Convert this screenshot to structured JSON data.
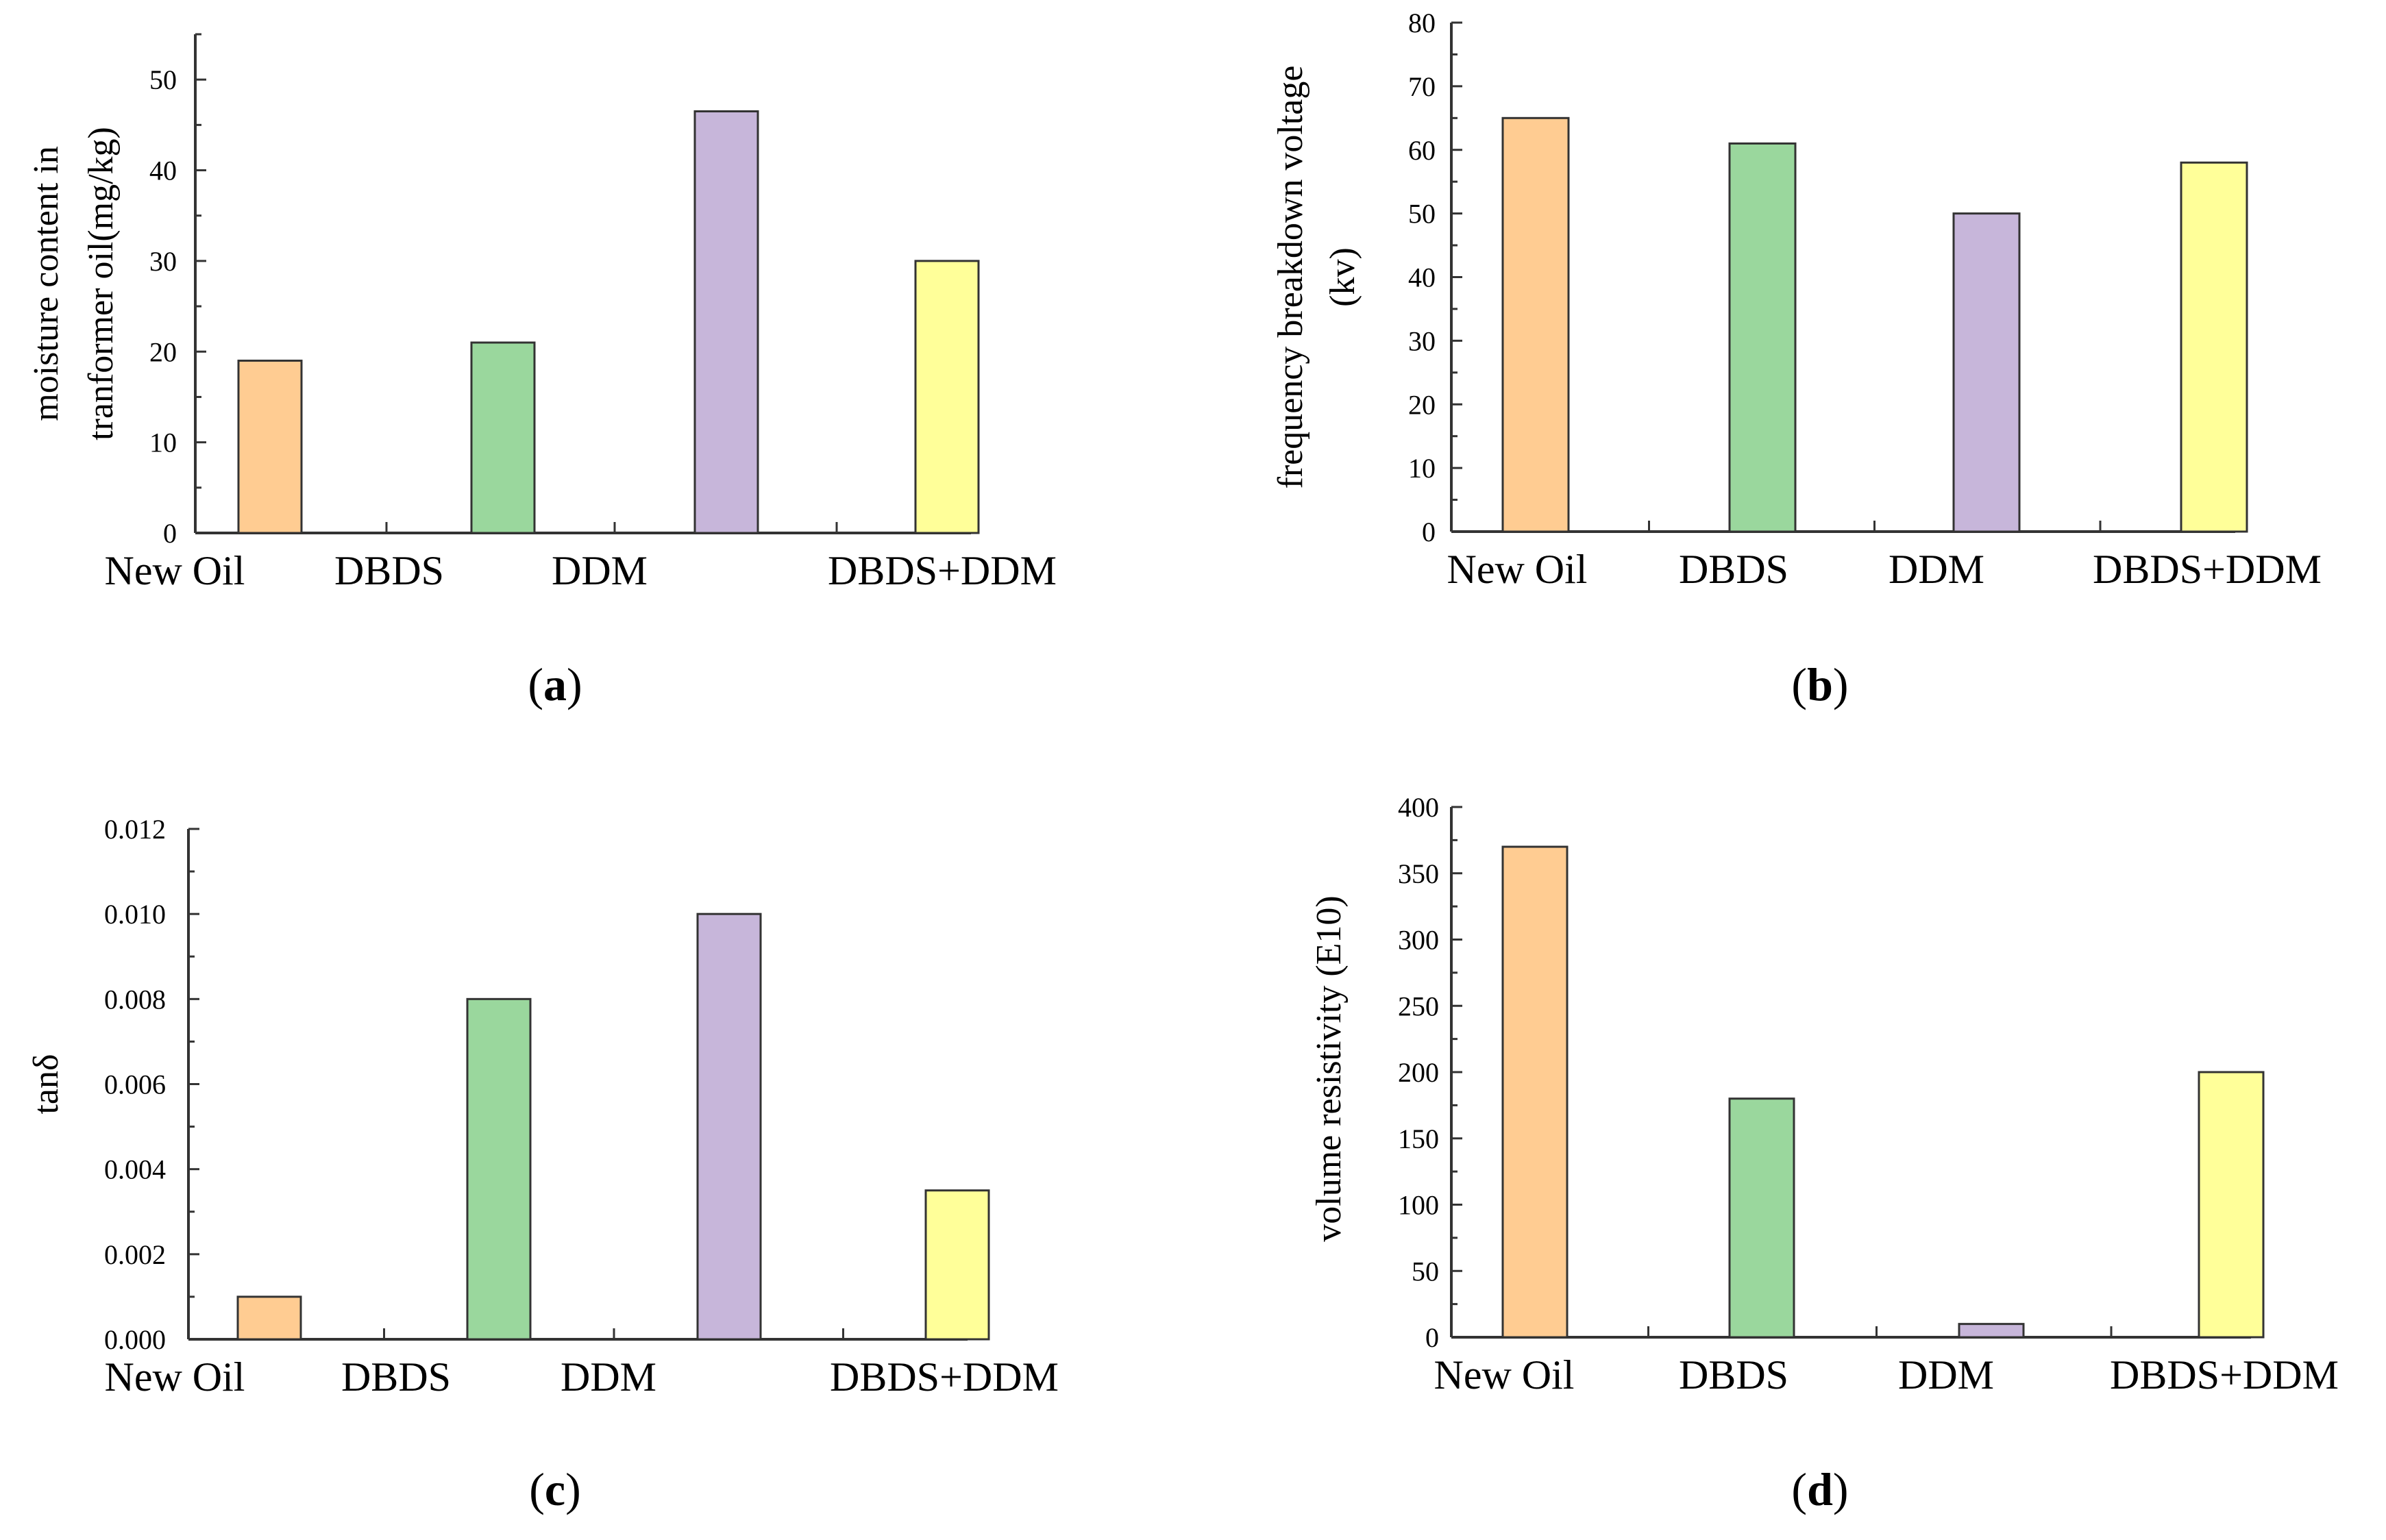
{
  "figure": {
    "panel_labels": [
      {
        "open": "(",
        "letter": "a",
        "close": ")"
      },
      {
        "open": "(",
        "letter": "b",
        "close": ")"
      },
      {
        "open": "(",
        "letter": "c",
        "close": ")"
      },
      {
        "open": "(",
        "letter": "d",
        "close": ")"
      }
    ]
  },
  "colors": {
    "New Oil": "#FFCC92",
    "DBDS": "#9AD79D",
    "DDM": "#C7B6DA",
    "DBDS+DDM": "#FFFF99",
    "bar_stroke": "#333333",
    "axis": "#333333"
  },
  "chart_data": [
    {
      "type": "bar",
      "panel": "a",
      "categories": [
        "New Oil",
        "DBDS",
        "DDM",
        "DBDS+DDM"
      ],
      "values": [
        19,
        21,
        46.5,
        30
      ],
      "ylabel_lines": [
        "moisture content in",
        "tranformer oil(mg/kg)"
      ],
      "xlabel": "",
      "ylim": [
        0,
        55
      ],
      "yticks": [
        "0",
        "10",
        "20",
        "30",
        "40",
        "50"
      ],
      "ytick_values": [
        0,
        10,
        20,
        30,
        40,
        50
      ],
      "minor_step": 5
    },
    {
      "type": "bar",
      "panel": "b",
      "categories": [
        "New Oil",
        "DBDS",
        "DDM",
        "DBDS+DDM"
      ],
      "values": [
        65,
        61,
        50,
        58
      ],
      "ylabel_lines": [
        "frequency breakdown voltage",
        "(kv)"
      ],
      "xlabel": "",
      "ylim": [
        0,
        80
      ],
      "yticks": [
        "0",
        "10",
        "20",
        "30",
        "40",
        "50",
        "60",
        "70",
        "80"
      ],
      "ytick_values": [
        0,
        10,
        20,
        30,
        40,
        50,
        60,
        70,
        80
      ],
      "minor_step": 5
    },
    {
      "type": "bar",
      "panel": "c",
      "categories": [
        "New Oil",
        "DBDS",
        "DDM",
        "DBDS+DDM"
      ],
      "values": [
        0.001,
        0.008,
        0.01,
        0.0035
      ],
      "ylabel_lines": [
        "tanδ"
      ],
      "xlabel": "",
      "ylim": [
        0,
        0.012
      ],
      "yticks": [
        "0.000",
        "0.002",
        "0.004",
        "0.006",
        "0.008",
        "0.010",
        "0.012"
      ],
      "ytick_values": [
        0,
        0.002,
        0.004,
        0.006,
        0.008,
        0.01,
        0.012
      ],
      "minor_step": 0.001
    },
    {
      "type": "bar",
      "panel": "d",
      "categories": [
        "New Oil",
        "DBDS",
        "DDM",
        "DBDS+DDM"
      ],
      "values": [
        370,
        180,
        10,
        200
      ],
      "ylabel_lines": [
        "volume resistivity (E10)"
      ],
      "xlabel": "",
      "ylim": [
        0,
        400
      ],
      "yticks": [
        "0",
        "50",
        "100",
        "150",
        "200",
        "250",
        "300",
        "350",
        "400"
      ],
      "ytick_values": [
        0,
        50,
        100,
        150,
        200,
        250,
        300,
        350,
        400
      ],
      "minor_step": 25
    }
  ]
}
